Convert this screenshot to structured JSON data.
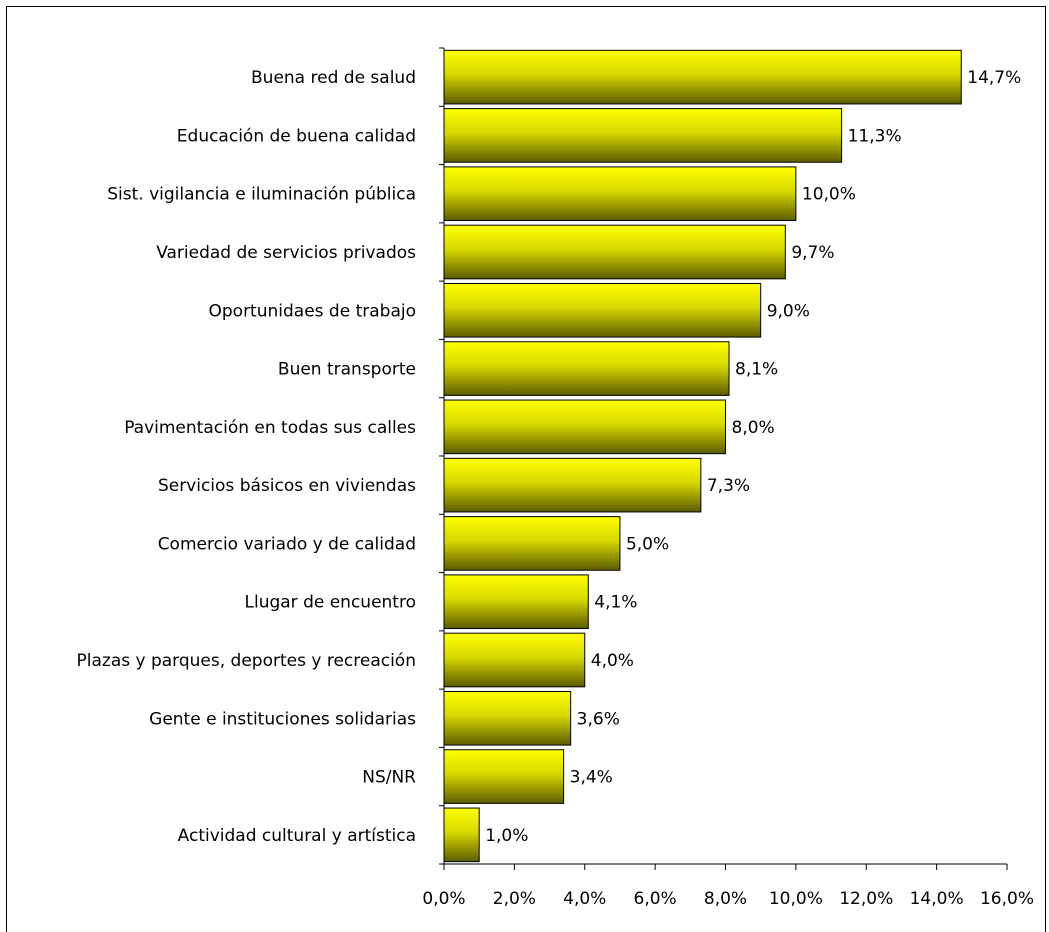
{
  "chart_data": {
    "type": "bar",
    "orientation": "horizontal",
    "title": "",
    "xlabel": "",
    "ylabel": "",
    "xlim": [
      0,
      16
    ],
    "x_ticks": [
      "0,0%",
      "2,0%",
      "4,0%",
      "6,0%",
      "8,0%",
      "10,0%",
      "12,0%",
      "14,0%",
      "16,0%"
    ],
    "categories": [
      "Buena red de salud",
      "Educación de buena calidad",
      "Sist. vigilancia e iluminación pública",
      "Variedad de servicios privados",
      "Oportunidaes de trabajo",
      "Buen transporte",
      "Pavimentación en todas sus calles",
      "Servicios básicos en viviendas",
      "Comercio variado y de calidad",
      "Llugar de encuentro",
      "Plazas y parques,  deportes y recreación",
      "Gente e instituciones solidarias",
      "NS/NR",
      "Actividad cultural y artística"
    ],
    "values": [
      14.7,
      11.3,
      10.0,
      9.7,
      9.0,
      8.1,
      8.0,
      7.3,
      5.0,
      4.1,
      4.0,
      3.6,
      3.4,
      1.0
    ],
    "value_labels": [
      "14,7%",
      "11,3%",
      "10,0%",
      "9,7%",
      "9,0%",
      "8,1%",
      "8,0%",
      "7,3%",
      "5,0%",
      "4,1%",
      "4,0%",
      "3,6%",
      "3,4%",
      "1,0%"
    ],
    "grid": false,
    "legend": "none",
    "colors": {
      "bar_top": "#ffff00",
      "bar_bottom": "#5c5c00",
      "edge": "#000000"
    }
  }
}
